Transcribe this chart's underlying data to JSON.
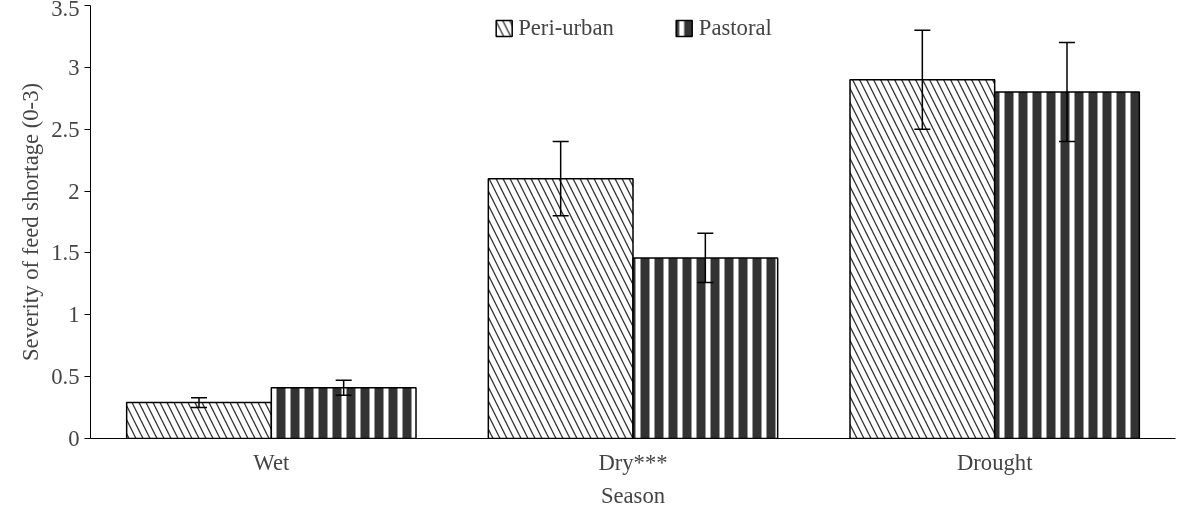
{
  "chart_data": {
    "type": "bar",
    "xlabel": "Season",
    "ylabel": "Severity of feed shortage (0-3)",
    "categories": [
      "Wet",
      "Dry***",
      "Drought"
    ],
    "series": [
      {
        "name": "Peri-urban",
        "color": "#333333",
        "values": [
          0.29,
          2.1,
          2.9
        ],
        "errors": [
          0.04,
          0.3,
          0.4
        ]
      },
      {
        "name": "Pastoral",
        "color": "#333333",
        "values": [
          0.41,
          1.46,
          2.8
        ],
        "errors": [
          0.06,
          0.2,
          0.4
        ]
      }
    ],
    "ylim": [
      0,
      3.5
    ],
    "yticks": [
      0,
      0.5,
      1,
      1.5,
      2,
      2.5,
      3,
      3.5
    ],
    "grid": false,
    "legend": "top"
  }
}
